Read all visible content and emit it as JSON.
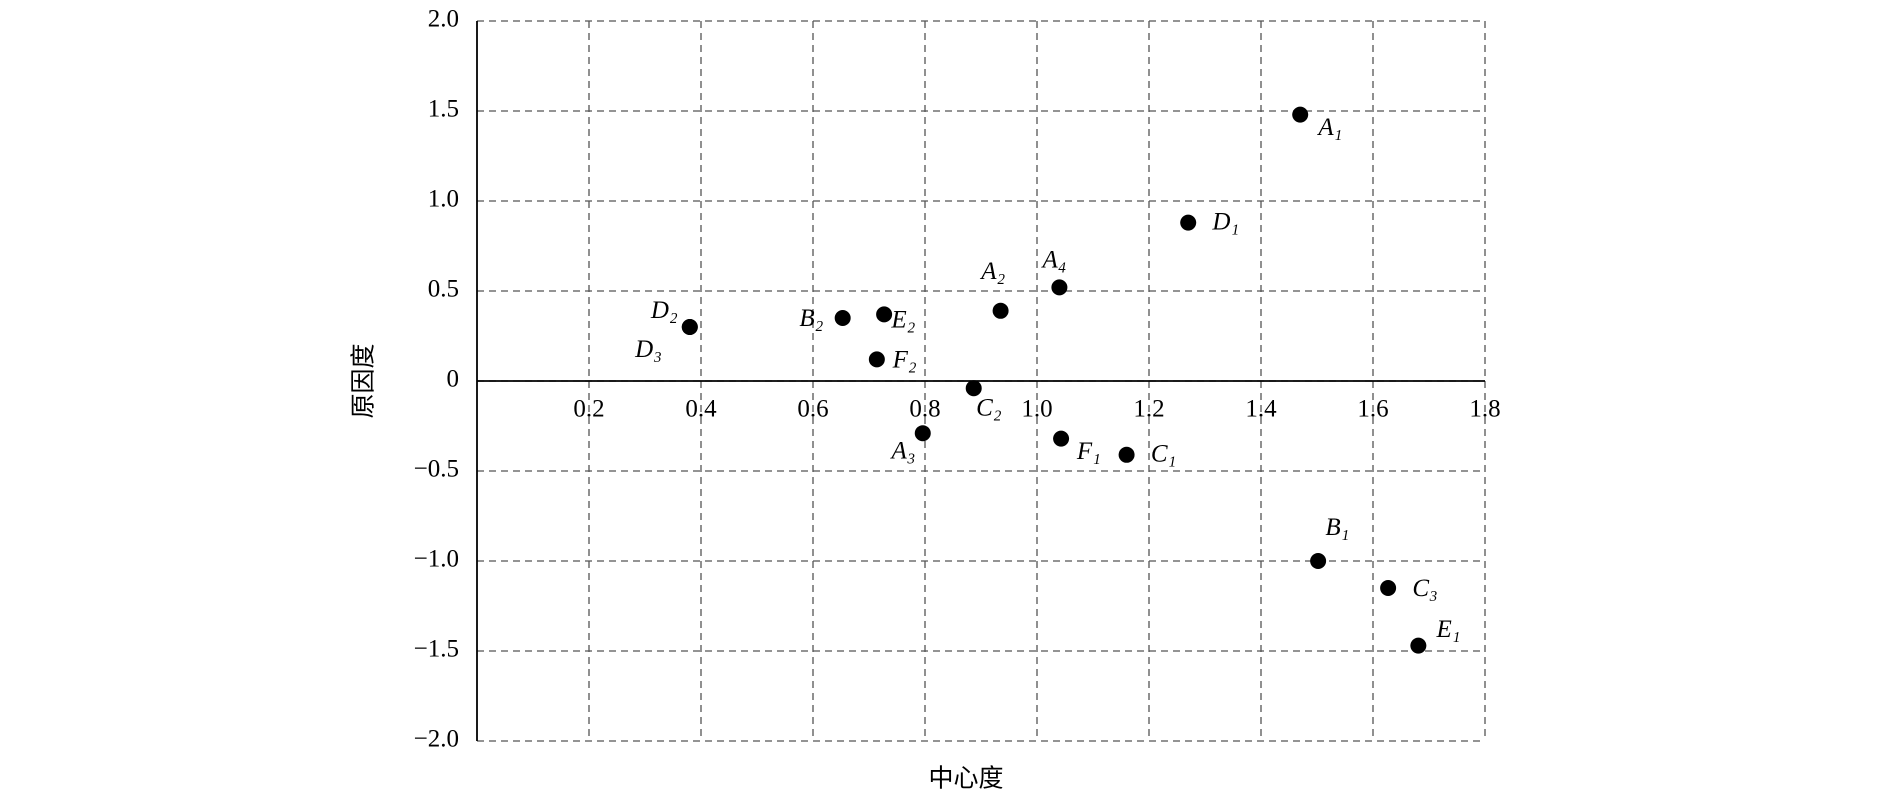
{
  "chart_data": {
    "type": "scatter",
    "x_label": "中心度",
    "y_label": "原因度",
    "x": [
      1.47,
      1.27,
      1.04,
      0.935,
      0.38,
      0.38,
      0.653,
      0.727,
      0.714,
      0.887,
      0.796,
      1.043,
      1.16,
      1.502,
      1.627,
      1.681
    ],
    "values": [
      1.48,
      0.88,
      0.52,
      0.39,
      0.3,
      0.3,
      0.35,
      0.37,
      0.12,
      -0.04,
      -0.29,
      -0.32,
      -0.41,
      -1.0,
      -1.15,
      -1.47
    ],
    "labels": [
      "A₁",
      "D₁",
      "A₄",
      "A₂",
      "D₂",
      "D₃",
      "B₂",
      "E₂",
      "F₂",
      "C₂",
      "A₃",
      "F₁",
      "C₁",
      "B₁",
      "C₃",
      "E₁"
    ],
    "color": "#000000",
    "xlim": [
      0,
      1.8
    ],
    "ylim": [
      -2,
      2
    ],
    "xticks": [
      0.2,
      0.4,
      0.6,
      0.8,
      {
        "value": 1,
        "label": "1.0"
      },
      1.2,
      1.4,
      1.6,
      1.8
    ],
    "yticks": [
      {
        "value": 2,
        "label": "2.0"
      },
      1.5,
      {
        "value": 1,
        "label": "1.0"
      },
      0.5,
      0,
      {
        "value": -0.5,
        "label": "−0.5"
      },
      {
        "value": -1,
        "label": "−1.0"
      },
      {
        "value": -1.5,
        "label": "−1.5"
      },
      {
        "value": -2,
        "label": "−2.0"
      }
    ],
    "grid": true
  }
}
